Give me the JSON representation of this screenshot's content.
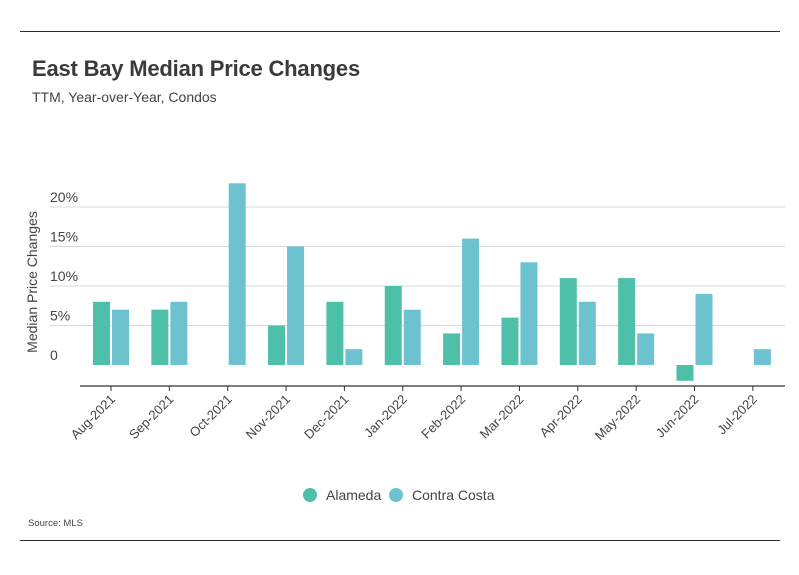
{
  "header": {
    "title": "East Bay Median Price Changes",
    "subtitle": "TTM, Year-over-Year, Condos"
  },
  "footer": {
    "source": "Source:  MLS"
  },
  "colors": {
    "alameda": "#4ebfa8",
    "contra_costa": "#6cc3cf",
    "grid": "#d9d9d9",
    "axis": "#333333"
  },
  "chart_data": {
    "type": "bar",
    "title": "East Bay Median Price Changes",
    "subtitle": "TTM, Year-over-Year, Condos",
    "xlabel": "",
    "ylabel": "Median Price Changes",
    "ylim": [
      -2,
      23
    ],
    "yticks": [
      0,
      5,
      10,
      15,
      20
    ],
    "ytick_labels": [
      "0",
      "5%",
      "10%",
      "15%",
      "20%"
    ],
    "grid": true,
    "legend": "bottom-center",
    "categories": [
      "Aug-2021",
      "Sep-2021",
      "Oct-2021",
      "Nov-2021",
      "Dec-2021",
      "Jan-2022",
      "Feb-2022",
      "Mar-2022",
      "Apr-2022",
      "May-2022",
      "Jun-2022",
      "Jul-2022"
    ],
    "series": [
      {
        "name": "Alameda",
        "color": "#4ebfa8",
        "values": [
          8,
          7,
          0,
          5,
          8,
          10,
          4,
          6,
          11,
          11,
          -2,
          0
        ]
      },
      {
        "name": "Contra Costa",
        "color": "#6cc3cf",
        "values": [
          7,
          8,
          23,
          15,
          2,
          7,
          16,
          13,
          8,
          4,
          9,
          2
        ]
      }
    ]
  }
}
